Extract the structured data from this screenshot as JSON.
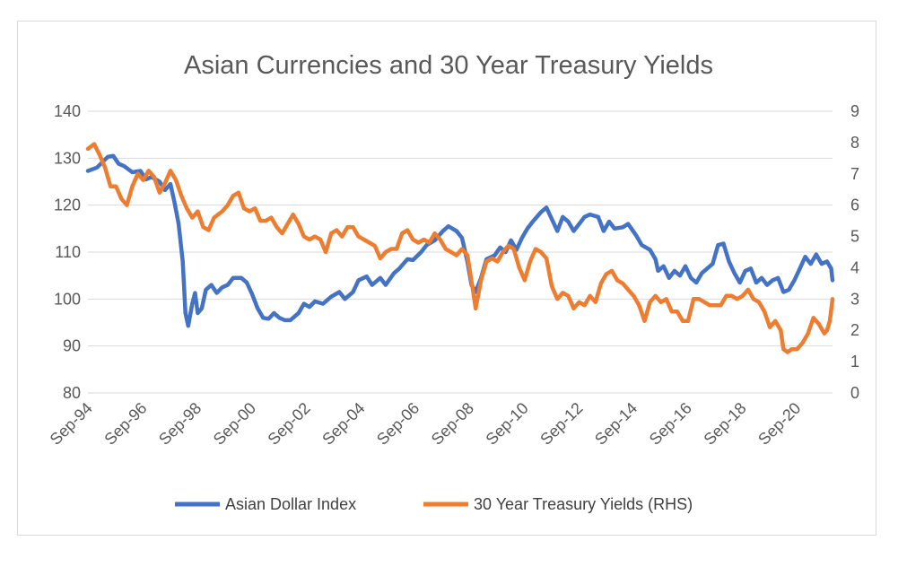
{
  "chart_data": {
    "type": "line",
    "title": "Asian Currencies and 30 Year Treasury Yields",
    "xlabel": "",
    "ylabel": "",
    "x_tick_labels": [
      "Sep-94",
      "Sep-96",
      "Sep-98",
      "Sep-00",
      "Sep-02",
      "Sep-04",
      "Sep-06",
      "Sep-08",
      "Sep-10",
      "Sep-12",
      "Sep-14",
      "Sep-16",
      "Sep-18",
      "Sep-20"
    ],
    "x_start_year": 1994.67,
    "x_end_year": 2022.0,
    "y_left_ticks": [
      "80",
      "90",
      "100",
      "110",
      "120",
      "130",
      "140"
    ],
    "y_left_range": [
      80,
      140
    ],
    "y_right_ticks": [
      "0",
      "1",
      "2",
      "3",
      "4",
      "5",
      "6",
      "7",
      "8",
      "9"
    ],
    "y_right_range": [
      0,
      9
    ],
    "gridlines": true,
    "legend_position": "bottom",
    "series": [
      {
        "name": "Asian Dollar Index",
        "axis": "left",
        "color": "#4472c4",
        "points": [
          [
            1994.67,
            127.3
          ],
          [
            1995.0,
            128.0
          ],
          [
            1995.4,
            130.3
          ],
          [
            1995.6,
            130.5
          ],
          [
            1995.8,
            128.8
          ],
          [
            1996.0,
            128.3
          ],
          [
            1996.3,
            127.0
          ],
          [
            1996.6,
            127.3
          ],
          [
            1996.8,
            125.5
          ],
          [
            1997.0,
            126.0
          ],
          [
            1997.3,
            125.0
          ],
          [
            1997.5,
            123.2
          ],
          [
            1997.7,
            124.5
          ],
          [
            1997.85,
            120.5
          ],
          [
            1998.0,
            116.0
          ],
          [
            1998.15,
            108.0
          ],
          [
            1998.25,
            97.0
          ],
          [
            1998.35,
            94.3
          ],
          [
            1998.5,
            99.0
          ],
          [
            1998.6,
            101.3
          ],
          [
            1998.7,
            97.0
          ],
          [
            1998.85,
            98.0
          ],
          [
            1999.0,
            102.0
          ],
          [
            1999.2,
            103.0
          ],
          [
            1999.4,
            101.3
          ],
          [
            1999.6,
            102.5
          ],
          [
            1999.8,
            103.0
          ],
          [
            2000.0,
            104.5
          ],
          [
            2000.3,
            104.5
          ],
          [
            2000.5,
            103.5
          ],
          [
            2000.7,
            101.0
          ],
          [
            2000.9,
            98.0
          ],
          [
            2001.1,
            96.0
          ],
          [
            2001.3,
            95.8
          ],
          [
            2001.5,
            97.0
          ],
          [
            2001.7,
            96.0
          ],
          [
            2001.9,
            95.5
          ],
          [
            2002.1,
            95.5
          ],
          [
            2002.4,
            97.0
          ],
          [
            2002.6,
            99.0
          ],
          [
            2002.8,
            98.3
          ],
          [
            2003.0,
            99.5
          ],
          [
            2003.3,
            99.0
          ],
          [
            2003.6,
            100.5
          ],
          [
            2003.9,
            101.5
          ],
          [
            2004.1,
            100.0
          ],
          [
            2004.4,
            101.5
          ],
          [
            2004.6,
            104.0
          ],
          [
            2004.9,
            104.8
          ],
          [
            2005.1,
            103.0
          ],
          [
            2005.4,
            104.5
          ],
          [
            2005.6,
            103.0
          ],
          [
            2005.9,
            105.5
          ],
          [
            2006.1,
            106.5
          ],
          [
            2006.4,
            108.5
          ],
          [
            2006.6,
            108.3
          ],
          [
            2006.9,
            110.0
          ],
          [
            2007.1,
            111.5
          ],
          [
            2007.4,
            112.5
          ],
          [
            2007.7,
            114.5
          ],
          [
            2007.9,
            115.5
          ],
          [
            2008.2,
            114.5
          ],
          [
            2008.4,
            113.0
          ],
          [
            2008.6,
            108.0
          ],
          [
            2008.75,
            103.0
          ],
          [
            2008.9,
            101.5
          ],
          [
            2009.1,
            104.5
          ],
          [
            2009.3,
            108.5
          ],
          [
            2009.6,
            109.3
          ],
          [
            2009.8,
            111.0
          ],
          [
            2010.0,
            110.0
          ],
          [
            2010.2,
            112.5
          ],
          [
            2010.4,
            110.5
          ],
          [
            2010.6,
            113.0
          ],
          [
            2010.8,
            115.0
          ],
          [
            2011.0,
            116.5
          ],
          [
            2011.3,
            118.5
          ],
          [
            2011.5,
            119.5
          ],
          [
            2011.7,
            117.0
          ],
          [
            2011.9,
            114.5
          ],
          [
            2012.1,
            117.5
          ],
          [
            2012.3,
            116.5
          ],
          [
            2012.5,
            114.5
          ],
          [
            2012.7,
            116.0
          ],
          [
            2012.9,
            117.5
          ],
          [
            2013.1,
            118.0
          ],
          [
            2013.4,
            117.5
          ],
          [
            2013.6,
            114.5
          ],
          [
            2013.8,
            116.5
          ],
          [
            2014.0,
            115.0
          ],
          [
            2014.3,
            115.3
          ],
          [
            2014.5,
            116.0
          ],
          [
            2014.8,
            113.5
          ],
          [
            2015.0,
            111.5
          ],
          [
            2015.3,
            110.5
          ],
          [
            2015.5,
            108.5
          ],
          [
            2015.6,
            106.0
          ],
          [
            2015.8,
            107.0
          ],
          [
            2016.0,
            104.5
          ],
          [
            2016.2,
            106.0
          ],
          [
            2016.4,
            105.0
          ],
          [
            2016.6,
            107.0
          ],
          [
            2016.8,
            104.5
          ],
          [
            2017.0,
            103.5
          ],
          [
            2017.2,
            105.5
          ],
          [
            2017.4,
            106.5
          ],
          [
            2017.6,
            107.5
          ],
          [
            2017.8,
            111.5
          ],
          [
            2018.0,
            111.8
          ],
          [
            2018.2,
            108.0
          ],
          [
            2018.4,
            105.5
          ],
          [
            2018.6,
            103.5
          ],
          [
            2018.8,
            106.0
          ],
          [
            2019.0,
            106.5
          ],
          [
            2019.2,
            103.5
          ],
          [
            2019.4,
            104.5
          ],
          [
            2019.6,
            103.0
          ],
          [
            2019.8,
            104.0
          ],
          [
            2020.0,
            104.5
          ],
          [
            2020.2,
            101.5
          ],
          [
            2020.4,
            102.0
          ],
          [
            2020.6,
            104.0
          ],
          [
            2020.8,
            106.5
          ],
          [
            2021.0,
            109.0
          ],
          [
            2021.2,
            107.5
          ],
          [
            2021.4,
            109.5
          ],
          [
            2021.6,
            107.5
          ],
          [
            2021.8,
            108.0
          ],
          [
            2021.95,
            106.5
          ],
          [
            2022.0,
            104.0
          ]
        ]
      },
      {
        "name": "30 Year Treasury Yields (RHS)",
        "axis": "right",
        "color": "#ed7d31",
        "points": [
          [
            1994.67,
            7.8
          ],
          [
            1994.9,
            7.95
          ],
          [
            1995.1,
            7.6
          ],
          [
            1995.3,
            7.2
          ],
          [
            1995.5,
            6.6
          ],
          [
            1995.7,
            6.6
          ],
          [
            1995.9,
            6.2
          ],
          [
            1996.1,
            6.0
          ],
          [
            1996.3,
            6.6
          ],
          [
            1996.5,
            7.0
          ],
          [
            1996.7,
            6.8
          ],
          [
            1996.9,
            7.1
          ],
          [
            1997.1,
            6.9
          ],
          [
            1997.3,
            6.4
          ],
          [
            1997.5,
            6.7
          ],
          [
            1997.7,
            7.1
          ],
          [
            1997.9,
            6.8
          ],
          [
            1998.1,
            6.3
          ],
          [
            1998.3,
            5.9
          ],
          [
            1998.5,
            5.6
          ],
          [
            1998.7,
            5.8
          ],
          [
            1998.9,
            5.3
          ],
          [
            1999.1,
            5.2
          ],
          [
            1999.3,
            5.6
          ],
          [
            1999.6,
            5.8
          ],
          [
            1999.8,
            6.0
          ],
          [
            2000.0,
            6.3
          ],
          [
            2000.2,
            6.4
          ],
          [
            2000.4,
            5.9
          ],
          [
            2000.6,
            5.8
          ],
          [
            2000.8,
            5.9
          ],
          [
            2001.0,
            5.5
          ],
          [
            2001.2,
            5.5
          ],
          [
            2001.4,
            5.6
          ],
          [
            2001.6,
            5.3
          ],
          [
            2001.8,
            5.1
          ],
          [
            2002.0,
            5.4
          ],
          [
            2002.2,
            5.7
          ],
          [
            2002.4,
            5.4
          ],
          [
            2002.6,
            5.0
          ],
          [
            2002.8,
            4.9
          ],
          [
            2003.0,
            5.0
          ],
          [
            2003.2,
            4.9
          ],
          [
            2003.4,
            4.5
          ],
          [
            2003.6,
            5.1
          ],
          [
            2003.8,
            5.2
          ],
          [
            2004.0,
            5.0
          ],
          [
            2004.2,
            5.3
          ],
          [
            2004.4,
            5.3
          ],
          [
            2004.6,
            5.0
          ],
          [
            2004.8,
            4.9
          ],
          [
            2005.0,
            4.8
          ],
          [
            2005.2,
            4.7
          ],
          [
            2005.4,
            4.3
          ],
          [
            2005.6,
            4.5
          ],
          [
            2005.8,
            4.6
          ],
          [
            2006.0,
            4.6
          ],
          [
            2006.2,
            5.1
          ],
          [
            2006.4,
            5.2
          ],
          [
            2006.6,
            4.9
          ],
          [
            2006.8,
            4.8
          ],
          [
            2007.0,
            4.9
          ],
          [
            2007.2,
            4.8
          ],
          [
            2007.4,
            5.1
          ],
          [
            2007.6,
            4.9
          ],
          [
            2007.8,
            4.6
          ],
          [
            2008.0,
            4.5
          ],
          [
            2008.2,
            4.4
          ],
          [
            2008.4,
            4.6
          ],
          [
            2008.6,
            4.4
          ],
          [
            2008.8,
            3.3
          ],
          [
            2008.9,
            2.7
          ],
          [
            2009.1,
            3.6
          ],
          [
            2009.3,
            4.2
          ],
          [
            2009.5,
            4.3
          ],
          [
            2009.7,
            4.2
          ],
          [
            2009.9,
            4.5
          ],
          [
            2010.1,
            4.7
          ],
          [
            2010.3,
            4.6
          ],
          [
            2010.5,
            4.0
          ],
          [
            2010.7,
            3.6
          ],
          [
            2010.9,
            4.2
          ],
          [
            2011.1,
            4.6
          ],
          [
            2011.3,
            4.5
          ],
          [
            2011.5,
            4.3
          ],
          [
            2011.7,
            3.4
          ],
          [
            2011.9,
            3.0
          ],
          [
            2012.1,
            3.2
          ],
          [
            2012.3,
            3.1
          ],
          [
            2012.5,
            2.7
          ],
          [
            2012.7,
            2.9
          ],
          [
            2012.9,
            2.8
          ],
          [
            2013.1,
            3.1
          ],
          [
            2013.3,
            2.9
          ],
          [
            2013.5,
            3.5
          ],
          [
            2013.7,
            3.8
          ],
          [
            2013.9,
            3.9
          ],
          [
            2014.1,
            3.6
          ],
          [
            2014.3,
            3.5
          ],
          [
            2014.5,
            3.3
          ],
          [
            2014.7,
            3.1
          ],
          [
            2014.9,
            2.8
          ],
          [
            2015.1,
            2.3
          ],
          [
            2015.3,
            2.9
          ],
          [
            2015.5,
            3.1
          ],
          [
            2015.7,
            2.9
          ],
          [
            2015.9,
            3.0
          ],
          [
            2016.1,
            2.6
          ],
          [
            2016.3,
            2.6
          ],
          [
            2016.5,
            2.3
          ],
          [
            2016.7,
            2.3
          ],
          [
            2016.9,
            3.0
          ],
          [
            2017.1,
            3.0
          ],
          [
            2017.3,
            2.9
          ],
          [
            2017.5,
            2.8
          ],
          [
            2017.7,
            2.8
          ],
          [
            2017.9,
            2.8
          ],
          [
            2018.1,
            3.1
          ],
          [
            2018.3,
            3.1
          ],
          [
            2018.5,
            3.0
          ],
          [
            2018.7,
            3.1
          ],
          [
            2018.9,
            3.3
          ],
          [
            2019.1,
            3.0
          ],
          [
            2019.3,
            2.9
          ],
          [
            2019.5,
            2.6
          ],
          [
            2019.7,
            2.1
          ],
          [
            2019.9,
            2.3
          ],
          [
            2020.1,
            2.0
          ],
          [
            2020.2,
            1.4
          ],
          [
            2020.35,
            1.3
          ],
          [
            2020.5,
            1.4
          ],
          [
            2020.7,
            1.4
          ],
          [
            2020.9,
            1.6
          ],
          [
            2021.1,
            1.9
          ],
          [
            2021.3,
            2.4
          ],
          [
            2021.5,
            2.2
          ],
          [
            2021.7,
            1.9
          ],
          [
            2021.8,
            2.0
          ],
          [
            2021.9,
            2.3
          ],
          [
            2022.0,
            3.0
          ]
        ]
      }
    ]
  }
}
